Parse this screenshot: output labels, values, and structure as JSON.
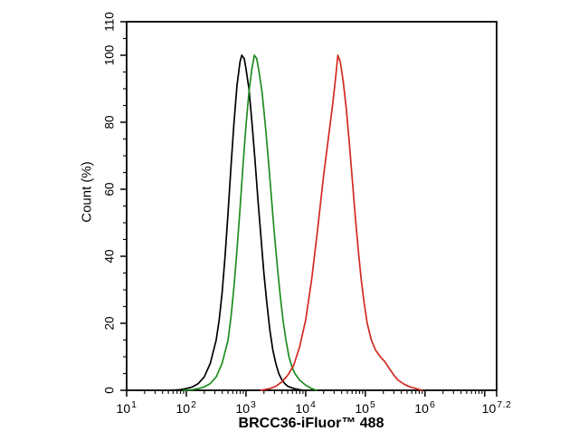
{
  "figure": {
    "background": "#ffffff",
    "frame_color": "#000000",
    "x_axis": {
      "label": "BRCC36-iFluor™ 488",
      "scale": "log10",
      "range_log10": [
        1,
        7.2
      ],
      "major_ticks_log10": [
        1,
        2,
        3,
        4,
        5,
        6,
        7,
        7.2
      ],
      "tick_labels": [
        {
          "base": "10",
          "exp": "1",
          "log10": 1
        },
        {
          "base": "10",
          "exp": "2",
          "log10": 2
        },
        {
          "base": "10",
          "exp": "3",
          "log10": 3
        },
        {
          "base": "10",
          "exp": "4",
          "log10": 4
        },
        {
          "base": "10",
          "exp": "5",
          "log10": 5
        },
        {
          "base": "10",
          "exp": "6",
          "log10": 6
        },
        {
          "base": "10",
          "exp": "7.2",
          "log10": 7.2
        }
      ]
    },
    "y_axis": {
      "label": "Count (%)",
      "range": [
        0,
        110
      ],
      "major_ticks": [
        0,
        20,
        40,
        60,
        80,
        100,
        110
      ],
      "minor_tick_step": 5
    }
  },
  "chart_data": {
    "type": "line",
    "title": "",
    "xlabel": "BRCC36-iFluor™ 488",
    "ylabel": "Count (%)",
    "x_scale": "log10",
    "xlim_log10": [
      1,
      7.2
    ],
    "ylim": [
      0,
      110
    ],
    "grid": false,
    "legend": "none",
    "series": [
      {
        "name": "black-curve",
        "color": "#000000",
        "peak": {
          "log10_x": 2.93,
          "x_value": 850,
          "count_pct": 100
        },
        "points": [
          [
            1.75,
            0
          ],
          [
            1.9,
            0.2
          ],
          [
            2.0,
            0.5
          ],
          [
            2.1,
            1
          ],
          [
            2.2,
            2
          ],
          [
            2.3,
            4
          ],
          [
            2.4,
            8
          ],
          [
            2.5,
            15
          ],
          [
            2.55,
            21
          ],
          [
            2.6,
            29
          ],
          [
            2.65,
            40
          ],
          [
            2.7,
            53
          ],
          [
            2.75,
            67
          ],
          [
            2.8,
            80
          ],
          [
            2.85,
            91
          ],
          [
            2.9,
            98
          ],
          [
            2.93,
            100
          ],
          [
            2.97,
            99
          ],
          [
            3.0,
            96
          ],
          [
            3.05,
            90
          ],
          [
            3.1,
            80
          ],
          [
            3.15,
            69
          ],
          [
            3.2,
            57
          ],
          [
            3.25,
            46
          ],
          [
            3.3,
            35
          ],
          [
            3.35,
            26
          ],
          [
            3.4,
            18
          ],
          [
            3.45,
            12
          ],
          [
            3.5,
            8
          ],
          [
            3.55,
            5
          ],
          [
            3.6,
            3.2
          ],
          [
            3.65,
            2
          ],
          [
            3.7,
            1.2
          ],
          [
            3.8,
            0.5
          ],
          [
            3.9,
            0.2
          ],
          [
            3.95,
            0
          ]
        ]
      },
      {
        "name": "green-curve",
        "color": "#1f8c1f",
        "peak": {
          "log10_x": 3.14,
          "x_value": 1380,
          "count_pct": 100
        },
        "points": [
          [
            1.95,
            0
          ],
          [
            2.1,
            0.2
          ],
          [
            2.2,
            0.5
          ],
          [
            2.3,
            1
          ],
          [
            2.4,
            2
          ],
          [
            2.5,
            4
          ],
          [
            2.6,
            8
          ],
          [
            2.7,
            15
          ],
          [
            2.75,
            22
          ],
          [
            2.8,
            31
          ],
          [
            2.85,
            42
          ],
          [
            2.9,
            54
          ],
          [
            2.95,
            67
          ],
          [
            3.0,
            79
          ],
          [
            3.05,
            89
          ],
          [
            3.1,
            96
          ],
          [
            3.14,
            100
          ],
          [
            3.18,
            99
          ],
          [
            3.22,
            95
          ],
          [
            3.27,
            89
          ],
          [
            3.32,
            80
          ],
          [
            3.37,
            70
          ],
          [
            3.42,
            59
          ],
          [
            3.47,
            48
          ],
          [
            3.52,
            38
          ],
          [
            3.57,
            29
          ],
          [
            3.62,
            21
          ],
          [
            3.67,
            15
          ],
          [
            3.72,
            10
          ],
          [
            3.77,
            7
          ],
          [
            3.82,
            5
          ],
          [
            3.9,
            3
          ],
          [
            4.0,
            1.5
          ],
          [
            4.1,
            0.5
          ],
          [
            4.18,
            0
          ]
        ]
      },
      {
        "name": "red-curve",
        "color": "#d22a22",
        "peak": {
          "log10_x": 4.54,
          "x_value": 34700,
          "count_pct": 100
        },
        "points": [
          [
            3.25,
            0
          ],
          [
            3.4,
            0.5
          ],
          [
            3.5,
            1.2
          ],
          [
            3.6,
            2.5
          ],
          [
            3.7,
            4.5
          ],
          [
            3.8,
            7.5
          ],
          [
            3.9,
            13
          ],
          [
            4.0,
            21
          ],
          [
            4.1,
            33
          ],
          [
            4.2,
            48
          ],
          [
            4.3,
            64
          ],
          [
            4.4,
            78
          ],
          [
            4.45,
            85
          ],
          [
            4.5,
            93
          ],
          [
            4.54,
            100
          ],
          [
            4.58,
            98
          ],
          [
            4.63,
            92
          ],
          [
            4.68,
            84
          ],
          [
            4.73,
            74
          ],
          [
            4.78,
            63
          ],
          [
            4.83,
            52
          ],
          [
            4.88,
            42
          ],
          [
            4.93,
            33
          ],
          [
            4.98,
            26
          ],
          [
            5.03,
            20
          ],
          [
            5.1,
            15
          ],
          [
            5.17,
            12
          ],
          [
            5.25,
            10
          ],
          [
            5.33,
            8.5
          ],
          [
            5.4,
            6.5
          ],
          [
            5.48,
            4.5
          ],
          [
            5.55,
            3
          ],
          [
            5.65,
            1.8
          ],
          [
            5.75,
            1
          ],
          [
            5.85,
            0.5
          ],
          [
            5.95,
            0
          ]
        ]
      }
    ]
  }
}
